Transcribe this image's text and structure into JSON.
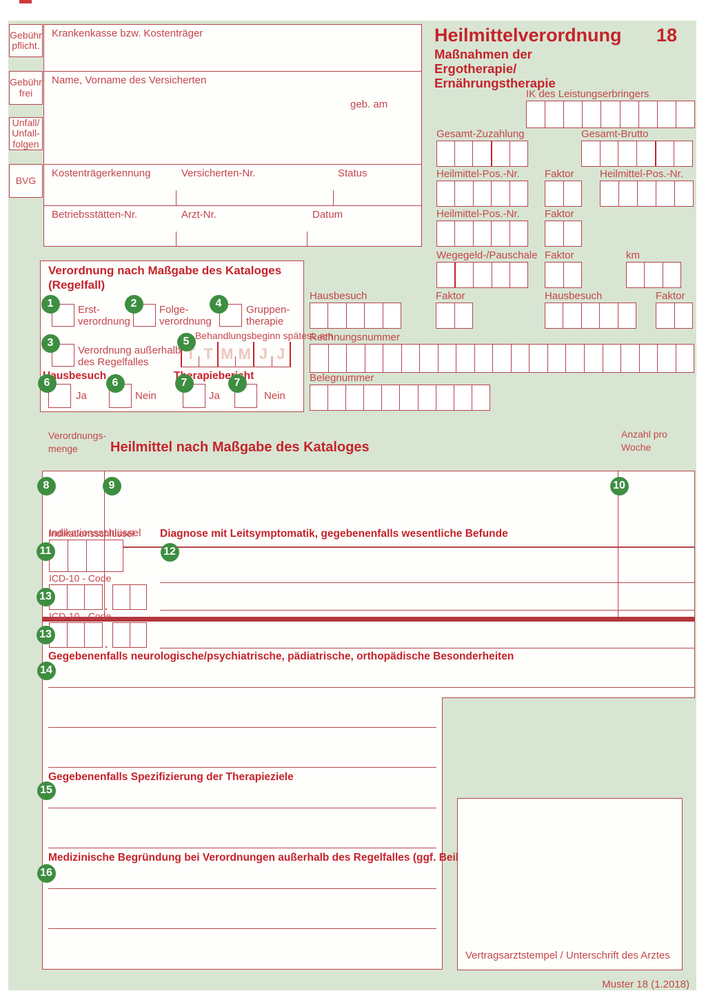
{
  "header": {
    "title": "Heilmittelverordnung",
    "form_number": "18",
    "subtitle": [
      "Maßnahmen der",
      "Ergotherapie/",
      "Ernährungstherapie"
    ]
  },
  "side_tabs": {
    "tab1": [
      "Gebühr",
      "pflicht."
    ],
    "tab2": [
      "Gebühr",
      "frei"
    ],
    "tab3": [
      "Unfall/",
      "Unfall-",
      "folgen"
    ],
    "tab4": [
      "BVG"
    ]
  },
  "patient": {
    "insurer_label": "Krankenkasse bzw. Kostenträger",
    "name_label": "Name, Vorname des Versicherten",
    "birthdate_label": "geb. am",
    "payer_id_label": "Kostenträgerkennung",
    "insured_no_label": "Versicherten-Nr.",
    "status_label": "Status",
    "practice_no_label": "Betriebsstätten-Nr.",
    "doctor_no_label": "Arzt-Nr.",
    "date_label": "Datum"
  },
  "fields": {
    "ik": {
      "label": "IK des Leistungserbringers",
      "cells": 9
    },
    "zuzahlung": {
      "label": "Gesamt-Zuzahlung",
      "cells": 5,
      "heavy": [
        3
      ]
    },
    "brutto": {
      "label": "Gesamt-Brutto",
      "cells": 6,
      "heavy": [
        4
      ]
    },
    "pos1": {
      "label": "Heilmittel-Pos.-Nr.",
      "cells": 5
    },
    "faktor1": {
      "label": "Faktor",
      "cells": 2
    },
    "pos2": {
      "label": "Heilmittel-Pos.-Nr.",
      "cells": 5
    },
    "pos3": {
      "label": "Heilmittel-Pos.-Nr.",
      "cells": 5
    },
    "faktor2": {
      "label": "Faktor",
      "cells": 2
    },
    "wegegeld": {
      "label": "Wegegeld-/Pauschale",
      "cells": 5,
      "heavy": [
        1
      ]
    },
    "faktor3": {
      "label": "Faktor",
      "cells": 2
    },
    "km": {
      "label": "km",
      "cells": 3
    },
    "hausbesuch1": {
      "label": "Hausbesuch",
      "cells": 5
    },
    "faktor4": {
      "label": "Faktor",
      "cells": 2
    },
    "hausbesuch2": {
      "label": "Hausbesuch",
      "cells": 5
    },
    "faktor5": {
      "label": "Faktor",
      "cells": 2
    },
    "rechnungsnummer": {
      "label": "Rechnungsnummer",
      "cells": 21
    },
    "belegnummer": {
      "label": "Belegnummer",
      "cells": 10
    },
    "indikation": {
      "label": "Indikationsschlüssel",
      "cells": 4
    },
    "icd1": {
      "label": "ICD-10 - Code",
      "cells_a": 3,
      "cells_b": 2
    },
    "icd2": {
      "label": "ICD-10 - Code",
      "cells_a": 3,
      "cells_b": 2
    }
  },
  "regelfall": {
    "title": [
      "Verordnung nach Maßgabe des Kataloges",
      "(Regelfall)"
    ],
    "erst": [
      "Erst-",
      "verordnung"
    ],
    "folge": [
      "Folge-",
      "verordnung"
    ],
    "gruppe": [
      "Gruppen-",
      "therapie"
    ],
    "ausserhalb": [
      "Verordnung außerhalb",
      "des Regelfalles"
    ],
    "beginn_label": "Behandlungsbeginn spätest. am",
    "date_letters": [
      "T",
      "T",
      "M",
      "M",
      "J",
      "J"
    ],
    "hausbesuch_label": "Hausbesuch",
    "therapiebericht_label": "Therapiebericht",
    "ja": "Ja",
    "nein": "Nein"
  },
  "heilmittel": {
    "menge_label": [
      "Verordnungs-",
      "menge"
    ],
    "title": "Heilmittel nach Maßgabe des Kataloges",
    "anzahl_label": [
      "Anzahl pro",
      "Woche"
    ]
  },
  "diagnose": {
    "diagnose_label": "Diagnose mit Leitsymptomatik, gegebenenfalls wesentliche Befunde",
    "besonderheiten_label": "Gegebenenfalls neurologische/psychiatrische, pädiatrische, orthopädische Besonderheiten",
    "ziele_label": "Gegebenenfalls Spezifizierung der Therapieziele",
    "begruendung_label": "Medizinische Begründung bei Verordnungen außerhalb des Regelfalles (ggf. Beiblatt)"
  },
  "circles": {
    "c1": "1",
    "c2": "2",
    "c3": "3",
    "c4": "4",
    "c5": "5",
    "c6a": "6",
    "c6b": "6",
    "c7a": "7",
    "c7b": "7",
    "c8": "8",
    "c9": "9",
    "c10": "10",
    "c11": "11",
    "c12": "12",
    "c13a": "13",
    "c13b": "13",
    "c14": "14",
    "c15": "15",
    "c16": "16"
  },
  "stamp_label": "Vertragsarztstempel / Unterschrift des Arztes",
  "footer": "Muster 18 (1.2018)",
  "colors": {
    "sheet_green": "#d8e5d2",
    "border_red": "#b5454c",
    "heading_red": "#c5232b",
    "label_red": "#c4464c",
    "circle_green": "#3e8e41",
    "faint_letter": "#eec6bc"
  }
}
